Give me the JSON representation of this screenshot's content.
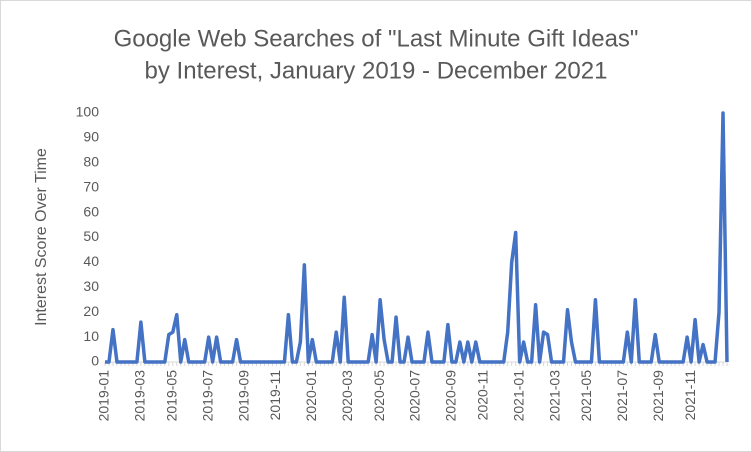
{
  "chart_data": {
    "type": "line",
    "title": [
      "Google Web Searches of \"Last Minute Gift Ideas\"",
      "by Interest, January 2019 - December 2021"
    ],
    "y_label": "Interest Score Over Time",
    "color": "#4472c4",
    "ylim": [
      0,
      100
    ],
    "yticks": [
      0,
      10,
      20,
      30,
      40,
      50,
      60,
      70,
      80,
      90,
      100
    ],
    "categories": [
      "2019-01",
      null,
      null,
      null,
      null,
      null,
      null,
      null,
      null,
      "2019-03",
      null,
      null,
      null,
      null,
      null,
      null,
      null,
      "2019-05",
      null,
      null,
      null,
      null,
      null,
      null,
      null,
      null,
      "2019-07",
      null,
      null,
      null,
      null,
      null,
      null,
      null,
      null,
      "2019-09",
      null,
      null,
      null,
      null,
      null,
      null,
      null,
      "2019-11",
      null,
      null,
      null,
      null,
      null,
      null,
      null,
      null,
      "2020-01",
      null,
      null,
      null,
      null,
      null,
      null,
      null,
      null,
      "2020-03",
      null,
      null,
      null,
      null,
      null,
      null,
      null,
      "2020-05",
      null,
      null,
      null,
      null,
      null,
      null,
      null,
      null,
      "2020-07",
      null,
      null,
      null,
      null,
      null,
      null,
      null,
      null,
      "2020-09",
      null,
      null,
      null,
      null,
      null,
      null,
      null,
      "2020-11",
      null,
      null,
      null,
      null,
      null,
      null,
      null,
      null,
      "2021-01",
      null,
      null,
      null,
      null,
      null,
      null,
      null,
      null,
      "2021-03",
      null,
      null,
      null,
      null,
      null,
      null,
      null,
      "2021-05",
      null,
      null,
      null,
      null,
      null,
      null,
      null,
      null,
      "2021-07",
      null,
      null,
      null,
      null,
      null,
      null,
      null,
      null,
      "2021-09",
      null,
      null,
      null,
      null,
      null,
      null,
      null,
      "2021-11",
      null,
      null,
      null,
      null,
      null,
      null,
      null,
      null,
      null
    ],
    "values": [
      0,
      0,
      13,
      0,
      0,
      0,
      0,
      0,
      0,
      16,
      0,
      0,
      0,
      0,
      0,
      0,
      11,
      12,
      19,
      0,
      9,
      0,
      0,
      0,
      0,
      0,
      10,
      0,
      10,
      0,
      0,
      0,
      0,
      9,
      0,
      0,
      0,
      0,
      0,
      0,
      0,
      0,
      0,
      0,
      0,
      0,
      19,
      0,
      0,
      8,
      39,
      0,
      9,
      0,
      0,
      0,
      0,
      0,
      12,
      0,
      26,
      0,
      0,
      0,
      0,
      0,
      0,
      11,
      0,
      25,
      9,
      0,
      0,
      18,
      0,
      0,
      10,
      0,
      0,
      0,
      0,
      12,
      0,
      0,
      0,
      0,
      15,
      0,
      0,
      8,
      0,
      8,
      0,
      8,
      0,
      0,
      0,
      0,
      0,
      0,
      0,
      12,
      40,
      52,
      0,
      8,
      0,
      0,
      23,
      0,
      12,
      11,
      0,
      0,
      0,
      0,
      21,
      8,
      0,
      0,
      0,
      0,
      0,
      25,
      0,
      0,
      0,
      0,
      0,
      0,
      0,
      12,
      0,
      25,
      0,
      0,
      0,
      0,
      11,
      0,
      0,
      0,
      0,
      0,
      0,
      0,
      10,
      0,
      17,
      0,
      7,
      0,
      0,
      0,
      20,
      100,
      0
    ]
  }
}
